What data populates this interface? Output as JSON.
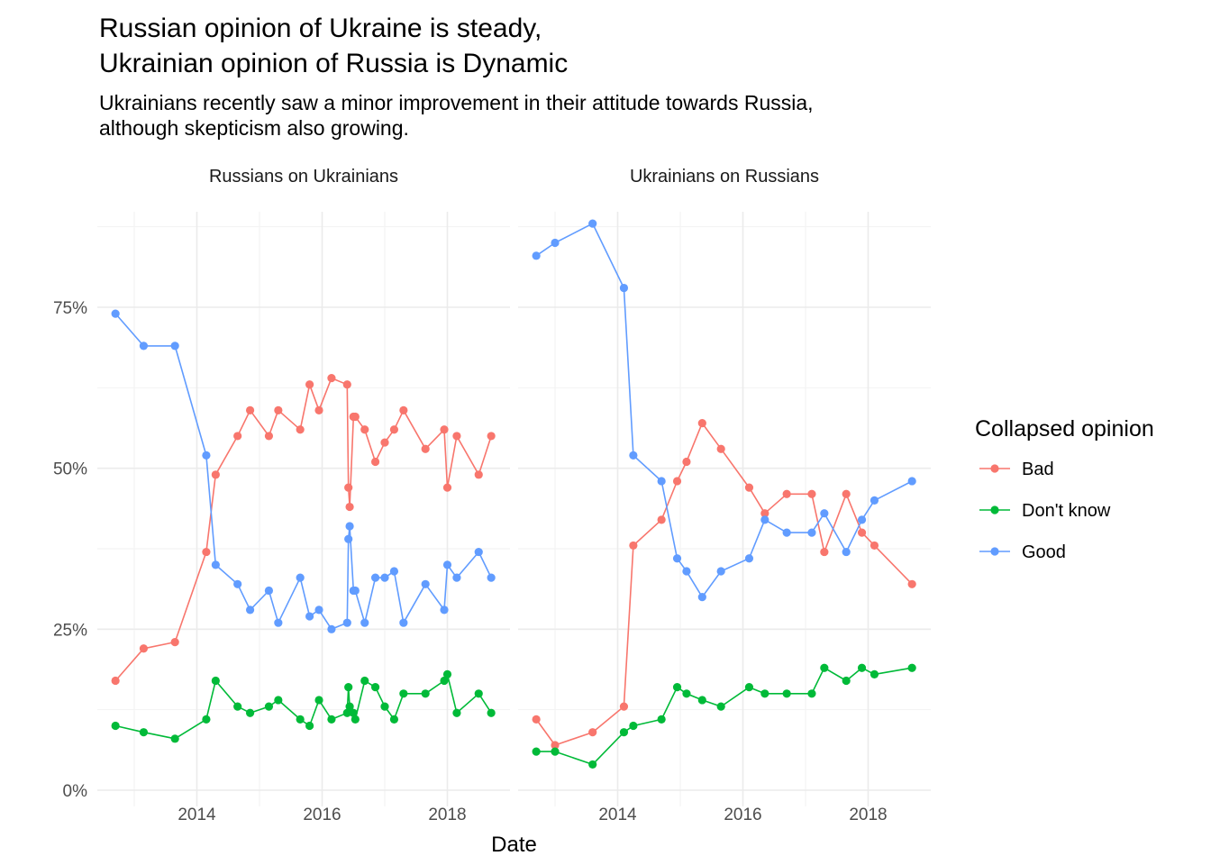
{
  "title": {
    "line1": "Russian opinion of Ukraine is steady,",
    "line2": "Ukrainian opinion of Russia is Dynamic"
  },
  "subtitle": {
    "line1": "Ukrainians recently saw a minor improvement in their attitude towards Russia,",
    "line2": "although skepticism also growing."
  },
  "chart_data": {
    "type": "line",
    "xlabel": "Date",
    "ylabel": "",
    "ylim": [
      0,
      0.9
    ],
    "xlim": [
      2012.55,
      2019.05
    ],
    "x_ticks": [
      2014,
      2016,
      2018
    ],
    "x_tick_labels": [
      "2014",
      "2016",
      "2018"
    ],
    "y_ticks": [
      0,
      0.25,
      0.5,
      0.75
    ],
    "y_tick_labels": [
      "0%",
      "25%",
      "50%",
      "75%"
    ],
    "grid": true,
    "legend": {
      "title": "Collapsed opinion",
      "position": "right",
      "entries": [
        {
          "name": "Bad",
          "color": "#F8766D"
        },
        {
          "name": "Don't know",
          "color": "#00BA38"
        },
        {
          "name": "Good",
          "color": "#619CFF"
        }
      ]
    },
    "panels": [
      {
        "label": "Russians on Ukrainians",
        "x": [
          2012.7,
          2013.15,
          2013.65,
          2014.15,
          2014.3,
          2014.65,
          2014.85,
          2015.15,
          2015.3,
          2015.65,
          2015.8,
          2015.95,
          2016.15,
          2016.4,
          2016.42,
          2016.44,
          2016.5,
          2016.53,
          2016.68,
          2016.85,
          2017.0,
          2017.15,
          2017.3,
          2017.65,
          2017.95,
          2018.0,
          2018.15,
          2018.5,
          2018.7
        ],
        "series": [
          {
            "name": "Bad",
            "values": [
              0.17,
              0.22,
              0.23,
              0.37,
              0.49,
              0.55,
              0.59,
              0.55,
              0.59,
              0.56,
              0.63,
              0.59,
              0.64,
              0.63,
              0.47,
              0.44,
              0.58,
              0.58,
              0.56,
              0.51,
              0.54,
              0.56,
              0.59,
              0.53,
              0.56,
              0.47,
              0.55,
              0.49,
              0.55
            ]
          },
          {
            "name": "Don't know",
            "values": [
              0.1,
              0.09,
              0.08,
              0.11,
              0.17,
              0.13,
              0.12,
              0.13,
              0.14,
              0.11,
              0.1,
              0.14,
              0.11,
              0.12,
              0.16,
              0.13,
              0.12,
              0.11,
              0.17,
              0.16,
              0.13,
              0.11,
              0.15,
              0.15,
              0.17,
              0.18,
              0.12,
              0.15,
              0.12
            ]
          },
          {
            "name": "Good",
            "values": [
              0.74,
              0.69,
              0.69,
              0.52,
              0.35,
              0.32,
              0.28,
              0.31,
              0.26,
              0.33,
              0.27,
              0.28,
              0.25,
              0.26,
              0.39,
              0.41,
              0.31,
              0.31,
              0.26,
              0.33,
              0.33,
              0.34,
              0.26,
              0.32,
              0.28,
              0.35,
              0.33,
              0.37,
              0.33
            ]
          }
        ]
      },
      {
        "label": "Ukrainians on Russians",
        "x": [
          2012.7,
          2013.0,
          2013.6,
          2014.1,
          2014.25,
          2014.7,
          2014.95,
          2015.1,
          2015.35,
          2015.65,
          2016.1,
          2016.35,
          2016.7,
          2017.1,
          2017.3,
          2017.65,
          2017.9,
          2018.1,
          2018.7
        ],
        "series": [
          {
            "name": "Bad",
            "values": [
              0.11,
              0.07,
              0.09,
              0.13,
              0.38,
              0.42,
              0.48,
              0.51,
              0.57,
              0.53,
              0.47,
              0.43,
              0.46,
              0.46,
              0.37,
              0.46,
              0.4,
              0.38,
              0.32
            ]
          },
          {
            "name": "Don't know",
            "values": [
              0.06,
              0.06,
              0.04,
              0.09,
              0.1,
              0.11,
              0.16,
              0.15,
              0.14,
              0.13,
              0.16,
              0.15,
              0.15,
              0.15,
              0.19,
              0.17,
              0.19,
              0.18,
              0.19
            ]
          },
          {
            "name": "Good",
            "values": [
              0.83,
              0.85,
              0.88,
              0.78,
              0.52,
              0.48,
              0.36,
              0.34,
              0.3,
              0.34,
              0.36,
              0.42,
              0.4,
              0.4,
              0.43,
              0.37,
              0.42,
              0.45,
              0.48
            ]
          }
        ]
      }
    ]
  }
}
